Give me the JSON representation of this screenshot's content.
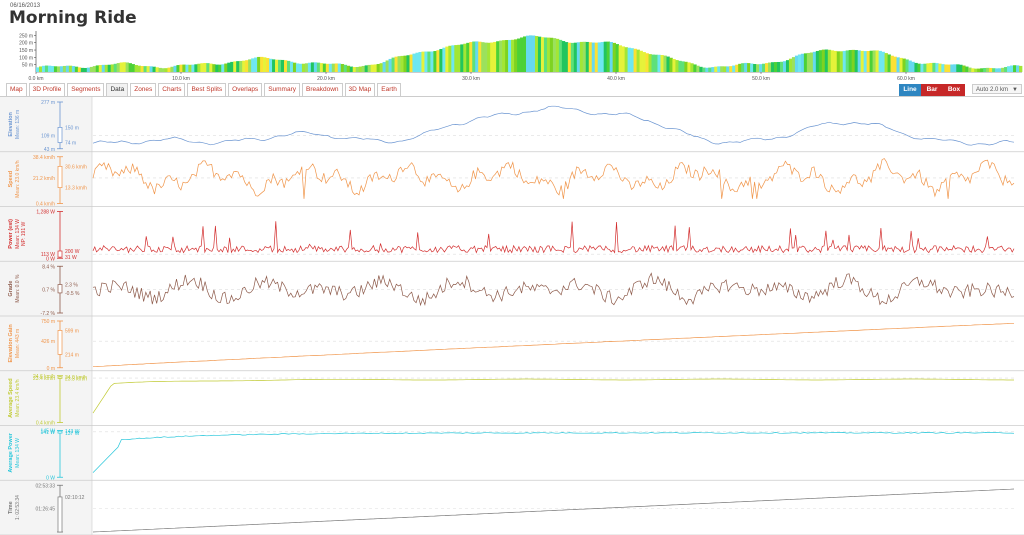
{
  "header": {
    "date": "06/16/2013",
    "title": "Morning Ride"
  },
  "profile": {
    "y_ticks": [
      "250 m",
      "200 m",
      "150 m",
      "100 m",
      "50 m"
    ],
    "x_ticks": [
      "0.0 km",
      "10.0 km",
      "20.0 km",
      "30.0 km",
      "40.0 km",
      "50.0 km",
      "60.0 km"
    ],
    "x_max_km": 68,
    "y_max_m": 280
  },
  "tabs": [
    {
      "label": "Map"
    },
    {
      "label": "3D Profile"
    },
    {
      "label": "Segments"
    },
    {
      "label": "Data",
      "active": true
    },
    {
      "label": "Zones"
    },
    {
      "label": "Charts"
    },
    {
      "label": "Best Splits"
    },
    {
      "label": "Overlaps"
    },
    {
      "label": "Summary"
    },
    {
      "label": "Breakdown"
    },
    {
      "label": "3D Map"
    },
    {
      "label": "Earth"
    }
  ],
  "toggles": {
    "line": "Line",
    "bar": "Bar",
    "box": "Box"
  },
  "auto_select": "Auto 2.0 km",
  "chart_data": [
    {
      "type": "line",
      "name": "Elevation",
      "mean_label": "Mean: 136 m",
      "color": "#6b95d1",
      "min": "43 m",
      "max": "277 m",
      "box_upper": "150 m",
      "box_lower": "74 m",
      "mean_tick": "109 m",
      "shape": "elevation",
      "min_v": 43,
      "max_v": 277,
      "mean_v": 109,
      "upper_v": 150,
      "lower_v": 74
    },
    {
      "type": "line",
      "name": "Speed",
      "mean_label": "Mean: 23.0 km/h",
      "color": "#f0954a",
      "min": "0.4 km/h",
      "max": "38.4 km/h",
      "box_upper": "30.6 km/h",
      "box_lower": "13.3 km/h",
      "mean_tick": "21.2 km/h",
      "shape": "speed",
      "min_v": 0.4,
      "max_v": 38.4,
      "mean_v": 21.2,
      "upper_v": 30.6,
      "lower_v": 13.3
    },
    {
      "type": "line",
      "name": "Power (est)",
      "mean_label": "Mean: 134 W",
      "extra_label": "NP: 191 W",
      "color": "#d32f2f",
      "min": "0 W",
      "max": "1,288 W",
      "box_upper": "200 W",
      "box_lower": "31 W",
      "mean_tick": "113 W",
      "shape": "power",
      "min_v": 0,
      "max_v": 1288,
      "mean_v": 113,
      "upper_v": 200,
      "lower_v": 31
    },
    {
      "type": "line",
      "name": "Grade",
      "mean_label": "Mean: 0.0 %",
      "color": "#8d5a4a",
      "min": "-7.2 %",
      "max": "8.4 %",
      "box_upper": "2.3 %",
      "box_lower": "-0.5 %",
      "mean_tick": "0.7 %",
      "shape": "grade",
      "min_v": -7.2,
      "max_v": 8.4,
      "mean_v": 0.7,
      "upper_v": 2.3,
      "lower_v": -0.5
    },
    {
      "type": "line",
      "name": "Elevation Gain",
      "mean_label": "Mean: 443 m",
      "color": "#f0954a",
      "min": "0 m",
      "max": "750 m",
      "box_upper": "599 m",
      "box_lower": "214 m",
      "mean_tick": "426 m",
      "shape": "gain",
      "min_v": 0,
      "max_v": 750,
      "mean_v": 426,
      "upper_v": 599,
      "lower_v": 214
    },
    {
      "type": "line",
      "name": "Average Speed",
      "mean_label": "Mean: 23.4 km/h",
      "color": "#c0ca33",
      "min": "0.4 km/h",
      "max": "24.6 km/h",
      "box_upper": "24.0 km/h",
      "box_lower": "23.3 km/h",
      "mean_tick": "23.4 km/h",
      "shape": "avgspeed",
      "min_v": 0.4,
      "max_v": 24.6,
      "mean_v": 23.4,
      "upper_v": 24.0,
      "lower_v": 23.3
    },
    {
      "type": "line",
      "name": "Average Power",
      "mean_label": "Mean: 134 W",
      "color": "#26c6da",
      "min": "0 W",
      "max": "145 W",
      "box_upper": "143 W",
      "box_lower": "137 W",
      "mean_tick": "141 W",
      "shape": "avgpower",
      "min_v": 0,
      "max_v": 145,
      "mean_v": 141,
      "upper_v": 143,
      "lower_v": 137
    },
    {
      "type": "line",
      "name": "Time",
      "mean_label": "1: 02:53:34",
      "color": "#777777",
      "min": "",
      "max": "02:53:33",
      "box_upper": "02:10:12",
      "box_lower": "",
      "mean_tick": "01:26:45",
      "shape": "time",
      "min_v": 0,
      "max_v": 1,
      "mean_v": 0.5,
      "upper_v": 0.75,
      "lower_v": 0
    }
  ]
}
